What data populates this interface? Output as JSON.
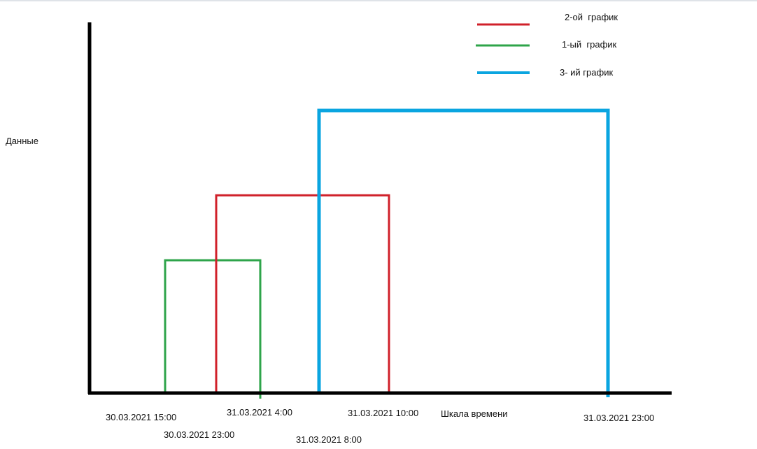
{
  "chart_data": {
    "type": "line",
    "title": "",
    "xlabel": "Шкала времени",
    "ylabel": "Данные",
    "grid": false,
    "legend_position": "top-right",
    "x_ticks": [
      {
        "label": "30.03.2021 15:00",
        "hours": 15
      },
      {
        "label": "30.03.2021 23:00",
        "hours": 23
      },
      {
        "label": "31.03.2021 4:00",
        "hours": 28
      },
      {
        "label": "31.03.2021 8:00",
        "hours": 32
      },
      {
        "label": "31.03.2021 10:00",
        "hours": 34
      },
      {
        "label": "31.03.2021 23:00",
        "hours": 47
      }
    ],
    "series": [
      {
        "name": "2-ой  график",
        "color": "#d0202a",
        "start": 23,
        "end": 34,
        "level": 0.7
      },
      {
        "name": "1-ый  график",
        "color": "#2ea44a",
        "start": 15,
        "end": 28,
        "level": 0.47
      },
      {
        "name": "3- ий график",
        "color": "#0aa5e0",
        "start": 32,
        "end": 47,
        "level": 1.0
      }
    ]
  }
}
